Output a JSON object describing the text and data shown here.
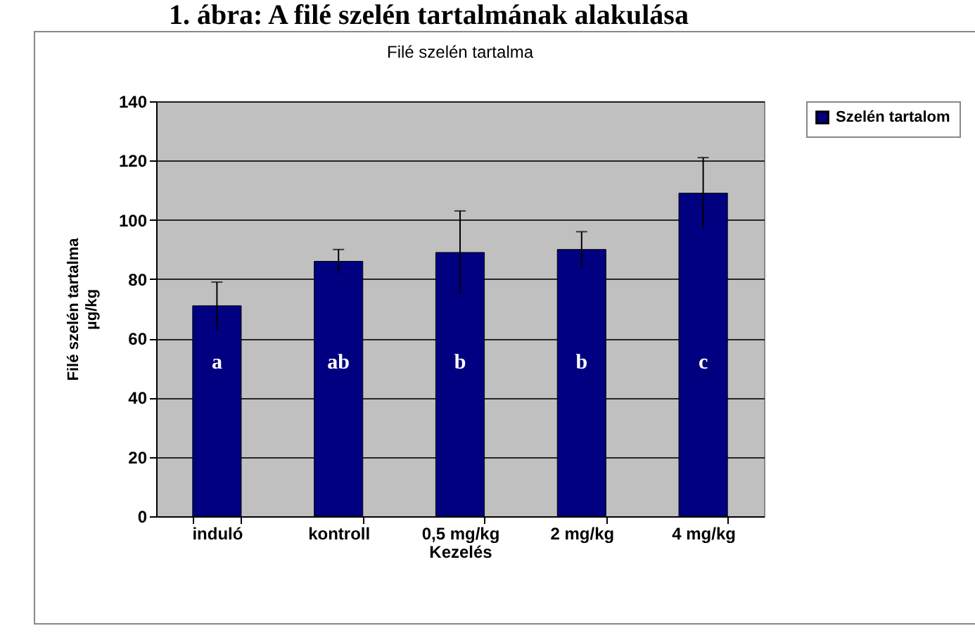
{
  "chart_data": {
    "type": "bar",
    "title": "Filé szelén tartalma",
    "xlabel": "Kezelés",
    "ylabel": "Filé szelén tartalma\nµg/kg",
    "categories": [
      "induló",
      "kontroll",
      "0,5 mg/kg",
      "2 mg/kg",
      "4 mg/kg"
    ],
    "series": [
      {
        "name": "Szelén tartalom",
        "color": "#000080",
        "values": [
          71,
          86,
          89,
          90,
          109
        ],
        "errors": [
          8,
          4,
          14,
          6,
          12
        ],
        "value_labels": [
          "a",
          "ab",
          "b",
          "b",
          "c"
        ]
      }
    ],
    "ylim": [
      0,
      140
    ],
    "yticks": [
      0,
      20,
      40,
      60,
      80,
      100,
      120,
      140
    ],
    "grid": "y",
    "legend": "right",
    "annotations": [
      "1. ábra: A filé szelén tartalmának alakulása"
    ]
  }
}
